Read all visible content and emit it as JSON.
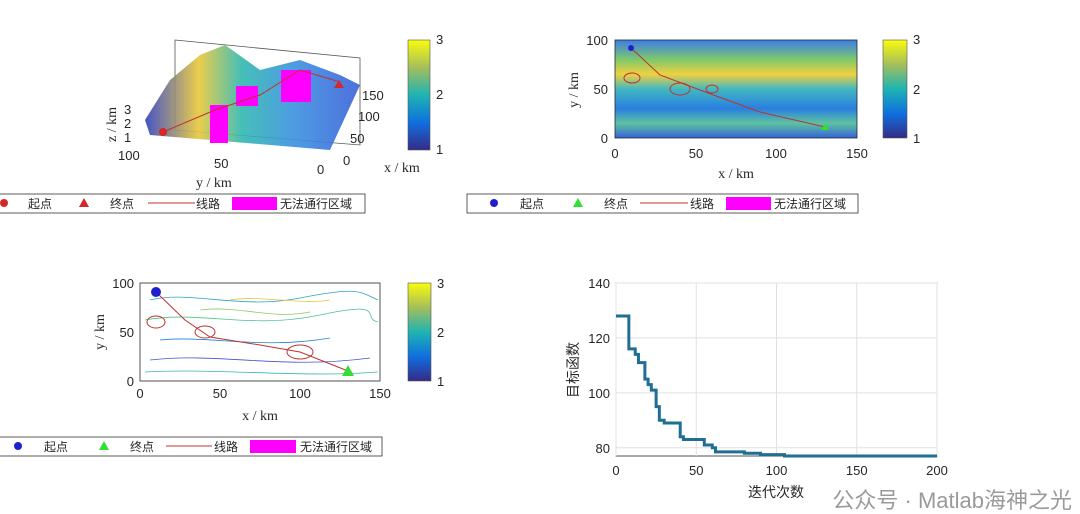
{
  "colors": {
    "start_3d": "#d62728",
    "end_3d": "#d62728",
    "start_2d": "#1f1fd0",
    "end_2d": "#33dd33",
    "route": "#c03030",
    "obstacle": "#ff00ff",
    "curve": "#1f6f94"
  },
  "legend": {
    "start": "起点",
    "end": "终点",
    "route": "线路",
    "obstacle": "无法通行区域"
  },
  "watermark": "公众号 · Matlab海神之光",
  "chart_data": [
    {
      "type": "surface",
      "xlabel": "x / km",
      "ylabel": "y / km",
      "zlabel": "z / km",
      "xticks": [
        "0",
        "50",
        "100",
        "150"
      ],
      "yticks": [
        "100",
        "50",
        "0"
      ],
      "zticks": [
        "1",
        "2",
        "3"
      ],
      "colorbar": {
        "range": [
          1,
          3
        ],
        "ticks": [
          "1",
          "2",
          "3"
        ]
      }
    },
    {
      "type": "heatmap",
      "xlabel": "x / km",
      "ylabel": "y / km",
      "xticks": [
        "0",
        "50",
        "100",
        "150"
      ],
      "yticks": [
        "0",
        "50",
        "100"
      ],
      "xlim": [
        0,
        150
      ],
      "ylim": [
        0,
        100
      ],
      "colorbar": {
        "range": [
          1,
          3
        ],
        "ticks": [
          "1",
          "2",
          "3"
        ]
      },
      "route": {
        "start": [
          10,
          90
        ],
        "end": [
          130,
          10
        ]
      }
    },
    {
      "type": "contour",
      "xlabel": "x / km",
      "ylabel": "y / km",
      "xticks": [
        "0",
        "50",
        "100",
        "150"
      ],
      "yticks": [
        "0",
        "50",
        "100"
      ],
      "xlim": [
        0,
        150
      ],
      "ylim": [
        0,
        100
      ],
      "colorbar": {
        "range": [
          1,
          3
        ],
        "ticks": [
          "1",
          "2",
          "3"
        ]
      },
      "route": {
        "start": [
          10,
          90
        ],
        "end": [
          130,
          10
        ]
      }
    },
    {
      "type": "line",
      "xlabel": "迭代次数",
      "ylabel": "目标函数",
      "xlim": [
        0,
        200
      ],
      "ylim": [
        77,
        140
      ],
      "xticks": [
        "0",
        "50",
        "100",
        "150",
        "200"
      ],
      "yticks": [
        "80",
        "100",
        "120",
        "140"
      ],
      "grid": true,
      "x": [
        0,
        8,
        12,
        14,
        18,
        20,
        22,
        25,
        27,
        30,
        35,
        40,
        42,
        55,
        60,
        62,
        80,
        90,
        105,
        200
      ],
      "y": [
        128,
        116,
        114,
        111,
        105,
        103,
        101,
        95,
        90,
        89,
        89,
        84,
        83,
        81,
        80,
        78.5,
        78,
        77.5,
        77,
        77
      ]
    }
  ]
}
